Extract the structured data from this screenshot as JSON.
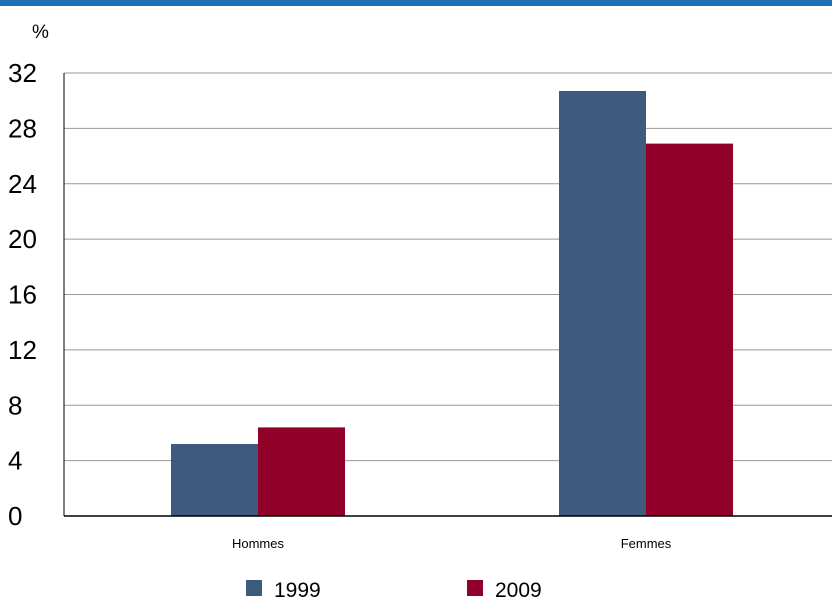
{
  "colors": {
    "top_bar": "#1f6fb5",
    "grid": "#9a9a9a",
    "axis": "#000000"
  },
  "chart_data": {
    "type": "bar",
    "ylabel": "%",
    "categories": [
      "Hommes",
      "Femmes"
    ],
    "series": [
      {
        "name": "1999",
        "color": "#3e5b7d",
        "values": [
          5.2,
          30.7
        ]
      },
      {
        "name": "2009",
        "color": "#900028",
        "values": [
          6.4,
          26.9
        ]
      }
    ],
    "ylim": [
      0,
      32
    ],
    "yticks": [
      0,
      4,
      8,
      12,
      16,
      20,
      24,
      28,
      32
    ],
    "grid": true,
    "legend_position": "bottom"
  }
}
